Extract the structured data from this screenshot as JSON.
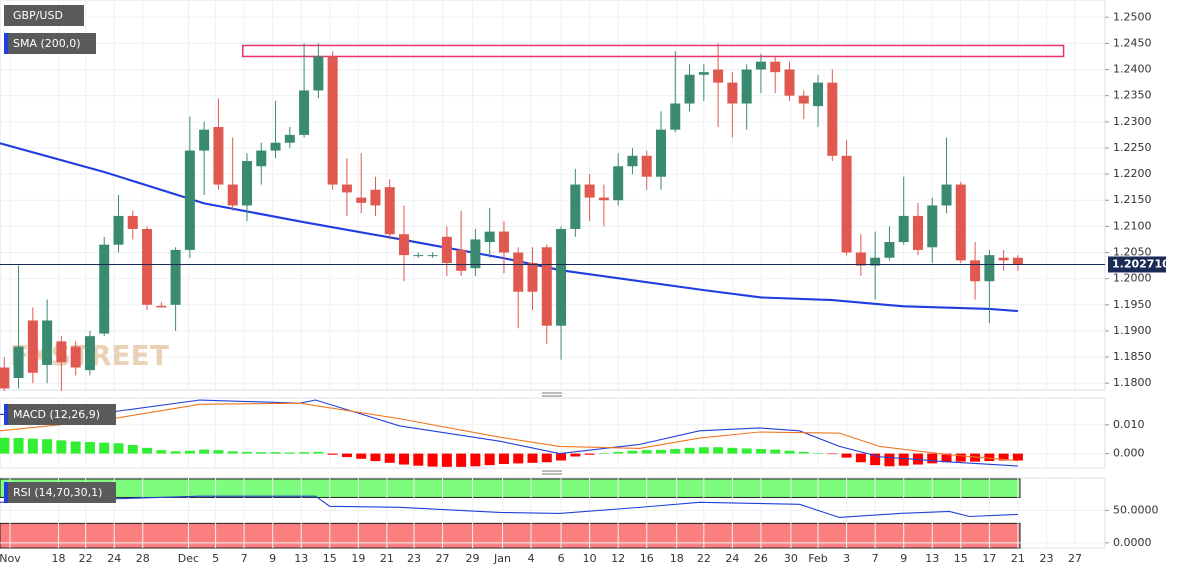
{
  "chart_data": [
    {
      "type": "candlestick",
      "name": "GBP/USD",
      "watermark": "FXSTREET",
      "xlim": [
        -0.3,
        77.1
      ],
      "ylim": [
        1.1787,
        1.2533
      ],
      "up_color": "#3a8a72",
      "down_color": "#e0584f",
      "x": [
        0,
        1,
        2,
        3,
        4,
        5,
        6,
        7,
        8,
        9,
        10,
        11,
        12,
        13,
        14,
        15,
        16,
        17,
        18,
        19,
        20,
        21,
        22,
        23,
        24,
        25,
        26,
        27,
        28,
        29,
        30,
        31,
        32,
        33,
        34,
        35,
        36,
        37,
        38,
        39,
        40,
        41,
        42,
        43,
        44,
        45,
        46,
        47,
        48,
        49,
        50,
        51,
        52,
        53,
        54,
        55,
        56,
        57,
        58,
        59,
        60,
        61,
        62,
        63,
        64,
        65,
        66,
        67,
        68,
        69,
        70,
        71
      ],
      "open": [
        1.183,
        1.181,
        1.192,
        1.1835,
        1.188,
        1.187,
        1.1825,
        1.1895,
        1.2065,
        1.212,
        1.2095,
        1.1948,
        1.195,
        1.2055,
        1.2245,
        1.229,
        1.218,
        1.214,
        1.2215,
        1.2245,
        1.226,
        1.2275,
        1.236,
        1.2425,
        1.218,
        1.2155,
        1.217,
        1.2175,
        1.2085,
        1.2045,
        1.2045,
        1.208,
        1.2055,
        1.202,
        1.207,
        1.209,
        1.205,
        1.203,
        1.206,
        1.191,
        1.2095,
        1.218,
        1.2155,
        1.215,
        1.2215,
        1.2235,
        1.2195,
        1.2285,
        1.2335,
        1.239,
        1.24,
        1.2375,
        1.2335,
        1.24,
        1.2415,
        1.24,
        1.235,
        1.233,
        1.2375,
        1.2235,
        1.205,
        1.2025,
        1.204,
        1.207,
        1.212,
        1.206,
        1.214,
        1.218,
        1.2035,
        1.1995,
        1.204,
        1.204
      ],
      "high": [
        1.185,
        1.2025,
        1.1945,
        1.196,
        1.189,
        1.188,
        1.19,
        1.208,
        1.216,
        1.213,
        1.21,
        1.1955,
        1.206,
        1.231,
        1.23,
        1.2345,
        1.227,
        1.224,
        1.226,
        1.234,
        1.229,
        1.245,
        1.245,
        1.2435,
        1.223,
        1.224,
        1.2195,
        1.219,
        1.214,
        1.205,
        1.205,
        1.21,
        1.213,
        1.2095,
        1.2135,
        1.211,
        1.206,
        1.206,
        1.2065,
        1.21,
        1.221,
        1.22,
        1.218,
        1.224,
        1.225,
        1.2245,
        1.232,
        1.2435,
        1.241,
        1.241,
        1.245,
        1.2395,
        1.241,
        1.243,
        1.2425,
        1.2415,
        1.236,
        1.239,
        1.24,
        1.2265,
        1.2085,
        1.209,
        1.21,
        1.2195,
        1.2145,
        1.2155,
        1.227,
        1.2185,
        1.207,
        1.2055,
        1.2055,
        1.2045
      ],
      "low": [
        1.1785,
        1.179,
        1.18,
        1.18,
        1.1785,
        1.1815,
        1.1815,
        1.189,
        1.205,
        1.2075,
        1.194,
        1.1945,
        1.19,
        1.204,
        1.216,
        1.217,
        1.213,
        1.211,
        1.218,
        1.223,
        1.225,
        1.227,
        1.2345,
        1.217,
        1.212,
        1.2125,
        1.212,
        1.2075,
        1.1995,
        1.204,
        1.204,
        1.2005,
        1.2005,
        1.2005,
        1.204,
        1.201,
        1.1905,
        1.194,
        1.1875,
        1.1845,
        1.208,
        1.211,
        1.21,
        1.214,
        1.22,
        1.217,
        1.217,
        1.228,
        1.232,
        1.234,
        1.229,
        1.227,
        1.2285,
        1.2355,
        1.2355,
        1.234,
        1.2305,
        1.229,
        1.2225,
        1.2045,
        1.2005,
        1.196,
        1.2035,
        1.2065,
        1.2045,
        1.203,
        1.2125,
        1.203,
        1.196,
        1.1915,
        1.2015,
        1.2015
      ],
      "close": [
        1.179,
        1.187,
        1.182,
        1.192,
        1.184,
        1.183,
        1.189,
        1.2065,
        1.212,
        1.2095,
        1.195,
        1.1945,
        1.2055,
        1.2245,
        1.2285,
        1.218,
        1.214,
        1.2225,
        1.2245,
        1.226,
        1.2275,
        1.236,
        1.2425,
        1.218,
        1.2165,
        1.2145,
        1.214,
        1.2085,
        1.2045,
        1.2045,
        1.2045,
        1.203,
        1.2015,
        1.2075,
        1.209,
        1.205,
        1.1975,
        1.1975,
        1.191,
        1.2095,
        1.218,
        1.2155,
        1.215,
        1.2215,
        1.2235,
        1.2195,
        1.2285,
        1.2335,
        1.239,
        1.2395,
        1.2375,
        1.2335,
        1.24,
        1.2415,
        1.2395,
        1.235,
        1.2335,
        1.2375,
        1.2235,
        1.205,
        1.2025,
        1.204,
        1.207,
        1.212,
        1.2055,
        1.214,
        1.218,
        1.2035,
        1.1995,
        1.2045,
        1.2035,
        1.2027
      ],
      "series": [
        {
          "name": "SMA (200,0)",
          "color": "#1f3de0",
          "x": [
            -0.3,
            7,
            14,
            21,
            28,
            35,
            39,
            49,
            53,
            58,
            63,
            69,
            71
          ],
          "values": [
            1.2259,
            1.2204,
            1.2144,
            1.2108,
            1.2074,
            1.2039,
            1.2016,
            1.1978,
            1.1964,
            1.1959,
            1.1947,
            1.1942,
            1.1938
          ]
        }
      ],
      "current_price": {
        "value": 1.20271,
        "label": "1.202710"
      },
      "zone": {
        "x": [
          16.7,
          74.2
        ],
        "y": [
          1.2425,
          1.2446
        ],
        "color": "#e8336a"
      },
      "yticks": [
        {
          "value": 1.25,
          "label": "1.2500"
        },
        {
          "value": 1.245,
          "label": "1.2450"
        },
        {
          "value": 1.24,
          "label": "1.2400"
        },
        {
          "value": 1.235,
          "label": "1.2350"
        },
        {
          "value": 1.23,
          "label": "1.2300"
        },
        {
          "value": 1.225,
          "label": "1.2250"
        },
        {
          "value": 1.22,
          "label": "1.2200"
        },
        {
          "value": 1.215,
          "label": "1.2150"
        },
        {
          "value": 1.21,
          "label": "1.2100"
        },
        {
          "value": 1.205,
          "label": "1.2050"
        },
        {
          "value": 1.2,
          "label": "1.2000"
        },
        {
          "value": 1.195,
          "label": "1.1950"
        },
        {
          "value": 1.19,
          "label": "1.1900"
        },
        {
          "value": 1.185,
          "label": "1.1850"
        },
        {
          "value": 1.18,
          "label": "1.1800"
        }
      ],
      "grid": true
    },
    {
      "type": "macd",
      "name": "MACD (12,26,9)",
      "xlim": [
        -0.3,
        77.1
      ],
      "ylim": [
        -0.005,
        0.0193
      ],
      "histogram": {
        "up_color": "#33ee33",
        "down_color": "#ff0000",
        "values": [
          0.0055,
          0.0054,
          0.0052,
          0.005,
          0.0046,
          0.0042,
          0.004,
          0.0038,
          0.0036,
          0.003,
          0.002,
          0.0012,
          0.0008,
          0.001,
          0.0014,
          0.0012,
          0.0008,
          0.0006,
          0.0005,
          0.0005,
          0.0004,
          0.0005,
          0.0006,
          -0.0004,
          -0.0012,
          -0.0018,
          -0.0026,
          -0.0032,
          -0.0038,
          -0.0042,
          -0.0045,
          -0.0046,
          -0.0046,
          -0.0044,
          -0.004,
          -0.0036,
          -0.0034,
          -0.0032,
          -0.003,
          -0.0024,
          -0.001,
          -0.0004,
          0.0002,
          0.0006,
          0.001,
          0.0012,
          0.0013,
          0.0016,
          0.002,
          0.0022,
          0.0022,
          0.002,
          0.0018,
          0.0016,
          0.0014,
          0.001,
          0.0006,
          0.0002,
          -0.0002,
          -0.0014,
          -0.003,
          -0.004,
          -0.0044,
          -0.0042,
          -0.0038,
          -0.0034,
          -0.003,
          -0.0028,
          -0.0028,
          -0.0026,
          -0.0024,
          -0.0024
        ]
      },
      "series": [
        {
          "color": "#2040d8",
          "x": [
            -0.3,
            6.7,
            13.7,
            20.7,
            21.8,
            27.7,
            34.7,
            38.9,
            44.5,
            48.7,
            52.9,
            55.7,
            58.5,
            61.3,
            66.2,
            71
          ],
          "values": [
            0.0136,
            0.0139,
            0.0186,
            0.0175,
            0.0186,
            0.0096,
            0.0043,
            0,
            0.0032,
            0.0079,
            0.0089,
            0.0079,
            0.0025,
            -0.0011,
            -0.0029,
            -0.0043
          ]
        },
        {
          "color": "#f07820",
          "x": [
            -0.3,
            6.7,
            13.7,
            20.7,
            27.7,
            34.7,
            38.9,
            44.5,
            48.7,
            52.9,
            58.5,
            61.3,
            66.2,
            71
          ],
          "values": [
            0.0079,
            0.0114,
            0.0171,
            0.0175,
            0.0121,
            0.0057,
            0.0025,
            0.0018,
            0.0054,
            0.0075,
            0.0071,
            0.0025,
            -0.0004,
            -0.0025
          ]
        }
      ],
      "yticks": [
        {
          "value": 0.01,
          "label": "0.010"
        },
        {
          "value": 0,
          "label": "0.000"
        }
      ]
    },
    {
      "type": "rsi",
      "name": "RSI (14,70,30,1)",
      "xlim": [
        -0.3,
        77.1
      ],
      "ylim": [
        -8,
        100
      ],
      "overbought": 70,
      "oversold": 30,
      "overbought_color": "#7dfc7d",
      "oversold_color": "#fb7f7f",
      "series": [
        {
          "color": "#2040d8",
          "x": [
            -0.3,
            6.7,
            13.7,
            21.8,
            22.8,
            27.7,
            34.7,
            38.9,
            44.5,
            48.7,
            55.7,
            58.5,
            62.7,
            66.2,
            67.6,
            71
          ],
          "values": [
            62.5,
            67.2,
            71.9,
            71.9,
            56.3,
            54.7,
            46.9,
            45.3,
            54.7,
            62.5,
            59.4,
            39.1,
            45.3,
            48.4,
            40.6,
            43.8
          ]
        }
      ],
      "yticks": [
        {
          "value": 50,
          "label": "50.0000"
        },
        {
          "value": 0,
          "label": "0.0000"
        }
      ],
      "xticks": [
        {
          "value": 0.4,
          "label": "Nov"
        },
        {
          "value": 3.8,
          "label": "18"
        },
        {
          "value": 5.7,
          "label": "22"
        },
        {
          "value": 7.7,
          "label": "24"
        },
        {
          "value": 9.7,
          "label": "28"
        },
        {
          "value": 12.9,
          "label": "Dec"
        },
        {
          "value": 14.8,
          "label": "5"
        },
        {
          "value": 16.8,
          "label": "7"
        },
        {
          "value": 18.8,
          "label": "9"
        },
        {
          "value": 20.8,
          "label": "13"
        },
        {
          "value": 22.8,
          "label": "15"
        },
        {
          "value": 24.8,
          "label": "19"
        },
        {
          "value": 26.8,
          "label": "21"
        },
        {
          "value": 28.7,
          "label": "23"
        },
        {
          "value": 30.7,
          "label": "27"
        },
        {
          "value": 32.8,
          "label": "29"
        },
        {
          "value": 34.9,
          "label": "Jan"
        },
        {
          "value": 36.9,
          "label": "4"
        },
        {
          "value": 39,
          "label": "6"
        },
        {
          "value": 41,
          "label": "10"
        },
        {
          "value": 43,
          "label": "12"
        },
        {
          "value": 45,
          "label": "16"
        },
        {
          "value": 47.1,
          "label": "18"
        },
        {
          "value": 49,
          "label": "22"
        },
        {
          "value": 51,
          "label": "24"
        },
        {
          "value": 53,
          "label": "26"
        },
        {
          "value": 55.1,
          "label": "30"
        },
        {
          "value": 57,
          "label": "Feb"
        },
        {
          "value": 59,
          "label": "3"
        },
        {
          "value": 61,
          "label": "7"
        },
        {
          "value": 63,
          "label": "9"
        },
        {
          "value": 65,
          "label": "13"
        },
        {
          "value": 67,
          "label": "15"
        },
        {
          "value": 69,
          "label": "17"
        },
        {
          "value": 71,
          "label": "21"
        },
        {
          "value": 73,
          "label": "23"
        },
        {
          "value": 75,
          "label": "27"
        }
      ]
    }
  ]
}
